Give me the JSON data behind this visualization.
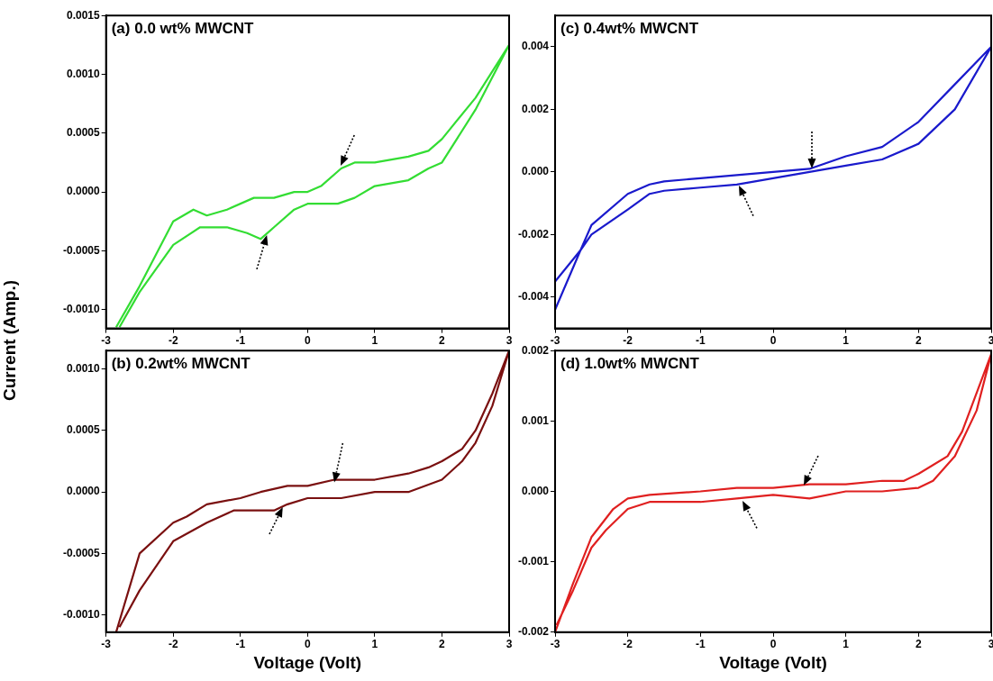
{
  "chart_data": [
    {
      "type": "line",
      "title": "(a) 0.0 wt% MWCNT",
      "ylabel": "Current (Amp.)",
      "xlim": [
        -3,
        3
      ],
      "xticks": [
        -3,
        -2,
        -1,
        0,
        1,
        2,
        3
      ],
      "ylim": [
        -0.00116,
        0.0015
      ],
      "yticks": [
        {
          "value": -0.001,
          "label": "-0.0010"
        },
        {
          "value": -0.0005,
          "label": "-0.0005"
        },
        {
          "value": 0,
          "label": "0.0000"
        },
        {
          "value": 0.0005,
          "label": "0.0005"
        },
        {
          "value": 0.001,
          "label": "0.0010"
        },
        {
          "value": 0.0015,
          "label": "0.0015"
        }
      ],
      "series": [
        {
          "color": "#33dd33",
          "x": [
            -2.85,
            -2.5,
            -2.0,
            -1.7,
            -1.5,
            -1.2,
            -0.8,
            -0.5,
            -0.2,
            0,
            0.2,
            0.5,
            0.7,
            1.0,
            1.5,
            1.8,
            2.0,
            2.5,
            3,
            2.5,
            2.0,
            1.8,
            1.5,
            1.0,
            0.7,
            0.45,
            0.2,
            0,
            -0.2,
            -0.5,
            -0.7,
            -0.9,
            -1.2,
            -1.6,
            -2.0,
            -2.5,
            -2.8
          ],
          "values": [
            -0.00115,
            -0.0008,
            -0.00025,
            -0.00015,
            -0.0002,
            -0.00015,
            -5e-05,
            -5e-05,
            0,
            0,
            5e-05,
            0.0002,
            0.00025,
            0.00025,
            0.0003,
            0.00035,
            0.00045,
            0.0008,
            0.00125,
            0.0007,
            0.00025,
            0.0002,
            0.0001,
            5e-05,
            -5e-05,
            -0.0001,
            -0.0001,
            -0.0001,
            -0.00015,
            -0.0003,
            -0.0004,
            -0.00035,
            -0.0003,
            -0.0003,
            -0.00045,
            -0.00085,
            -0.00115
          ]
        }
      ]
    },
    {
      "type": "line",
      "title": "(c) 0.4wt% MWCNT",
      "xlim": [
        -3,
        3
      ],
      "xticks": [
        -3,
        -2,
        -1,
        0,
        1,
        2,
        3
      ],
      "ylim": [
        -0.005,
        0.005
      ],
      "yticks": [
        {
          "value": -0.004,
          "label": "-0.004"
        },
        {
          "value": -0.002,
          "label": "-0.002"
        },
        {
          "value": 0,
          "label": "0.000"
        },
        {
          "value": 0.002,
          "label": "0.002"
        },
        {
          "value": 0.004,
          "label": "0.004"
        }
      ],
      "series": [
        {
          "color": "#1a1acc",
          "x": [
            -3,
            -2.65,
            -2.5,
            -2,
            -1.7,
            -1.5,
            -1,
            -0.5,
            0,
            0.5,
            1,
            1.5,
            2,
            2.5,
            3,
            2.5,
            2,
            1.5,
            1,
            0.5,
            0,
            -0.5,
            -1,
            -1.5,
            -1.7,
            -2,
            -2.5,
            -2.65,
            -3
          ],
          "values": [
            -0.0044,
            -0.0025,
            -0.0017,
            -0.0007,
            -0.0004,
            -0.0003,
            -0.0002,
            -0.0001,
            0,
            0.0001,
            0.0005,
            0.0008,
            0.0016,
            0.0028,
            0.004,
            0.002,
            0.0009,
            0.0004,
            0.0002,
            0,
            -0.0002,
            -0.0004,
            -0.0005,
            -0.0006,
            -0.0007,
            -0.0012,
            -0.002,
            -0.0025,
            -0.0035
          ]
        }
      ]
    },
    {
      "type": "line",
      "title": "(b) 0.2wt% MWCNT",
      "xlabel": "Voltage (Volt)",
      "xlim": [
        -3,
        3
      ],
      "xticks": [
        -3,
        -2,
        -1,
        0,
        1,
        2,
        3
      ],
      "ylim": [
        -0.00114,
        0.00115
      ],
      "yticks": [
        {
          "value": -0.001,
          "label": "-0.0010"
        },
        {
          "value": -0.0005,
          "label": "-0.0005"
        },
        {
          "value": 0,
          "label": "0.0000"
        },
        {
          "value": 0.0005,
          "label": "0.0005"
        },
        {
          "value": 0.001,
          "label": "0.0010"
        }
      ],
      "series": [
        {
          "color": "#7a1010",
          "x": [
            -2.85,
            -2.5,
            -2.0,
            -1.8,
            -1.5,
            -1,
            -0.7,
            -0.3,
            0,
            0.4,
            1,
            1.5,
            1.8,
            2.0,
            2.3,
            2.5,
            2.75,
            3,
            2.75,
            2.5,
            2.3,
            2.0,
            1.5,
            1,
            0.5,
            0.3,
            0,
            -0.3,
            -0.5,
            -1.1,
            -1.5,
            -2.0,
            -2.5,
            -2.8
          ],
          "values": [
            -0.00114,
            -0.0005,
            -0.00025,
            -0.0002,
            -0.0001,
            -5e-05,
            0,
            5e-05,
            5e-05,
            0.0001,
            0.0001,
            0.00015,
            0.0002,
            0.00025,
            0.00035,
            0.0005,
            0.0008,
            0.00115,
            0.0007,
            0.0004,
            0.00025,
            0.0001,
            0,
            0,
            -5e-05,
            -5e-05,
            -5e-05,
            -0.0001,
            -0.00015,
            -0.00015,
            -0.00025,
            -0.0004,
            -0.0008,
            -0.0011
          ]
        }
      ]
    },
    {
      "type": "line",
      "title": "(d) 1.0wt% MWCNT",
      "xlabel": "Voltage (Volt)",
      "xlim": [
        -3,
        3
      ],
      "xticks": [
        -3,
        -2,
        -1,
        0,
        1,
        2,
        3
      ],
      "ylim": [
        -0.002,
        0.002
      ],
      "yticks": [
        {
          "value": -0.002,
          "label": "-0.002"
        },
        {
          "value": -0.001,
          "label": "-0.001"
        },
        {
          "value": 0,
          "label": "0.000"
        },
        {
          "value": 0.001,
          "label": "0.001"
        },
        {
          "value": 0.002,
          "label": "0.002"
        }
      ],
      "series": [
        {
          "color": "#e02020",
          "x": [
            -3,
            -2.75,
            -2.5,
            -2.2,
            -2,
            -1.7,
            -1,
            -0.5,
            -0.3,
            0,
            0.5,
            1,
            1.5,
            1.8,
            2,
            2.4,
            2.6,
            2.8,
            3,
            2.8,
            2.5,
            2.2,
            2,
            1.5,
            1,
            0.5,
            0,
            -0.5,
            -1,
            -1.7,
            -2,
            -2.3,
            -2.5,
            -2.75,
            -2.98
          ],
          "values": [
            -0.002,
            -0.0013,
            -0.00065,
            -0.00025,
            -0.0001,
            -5e-05,
            0,
            5e-05,
            5e-05,
            5e-05,
            0.0001,
            0.0001,
            0.00015,
            0.00015,
            0.00025,
            0.0005,
            0.00085,
            0.0014,
            0.00195,
            0.00115,
            0.0005,
            0.00015,
            5e-05,
            0,
            0,
            -0.0001,
            -5e-05,
            -0.0001,
            -0.00015,
            -0.00015,
            -0.00025,
            -0.00055,
            -0.0008,
            -0.0014,
            -0.0019
          ]
        }
      ]
    }
  ]
}
